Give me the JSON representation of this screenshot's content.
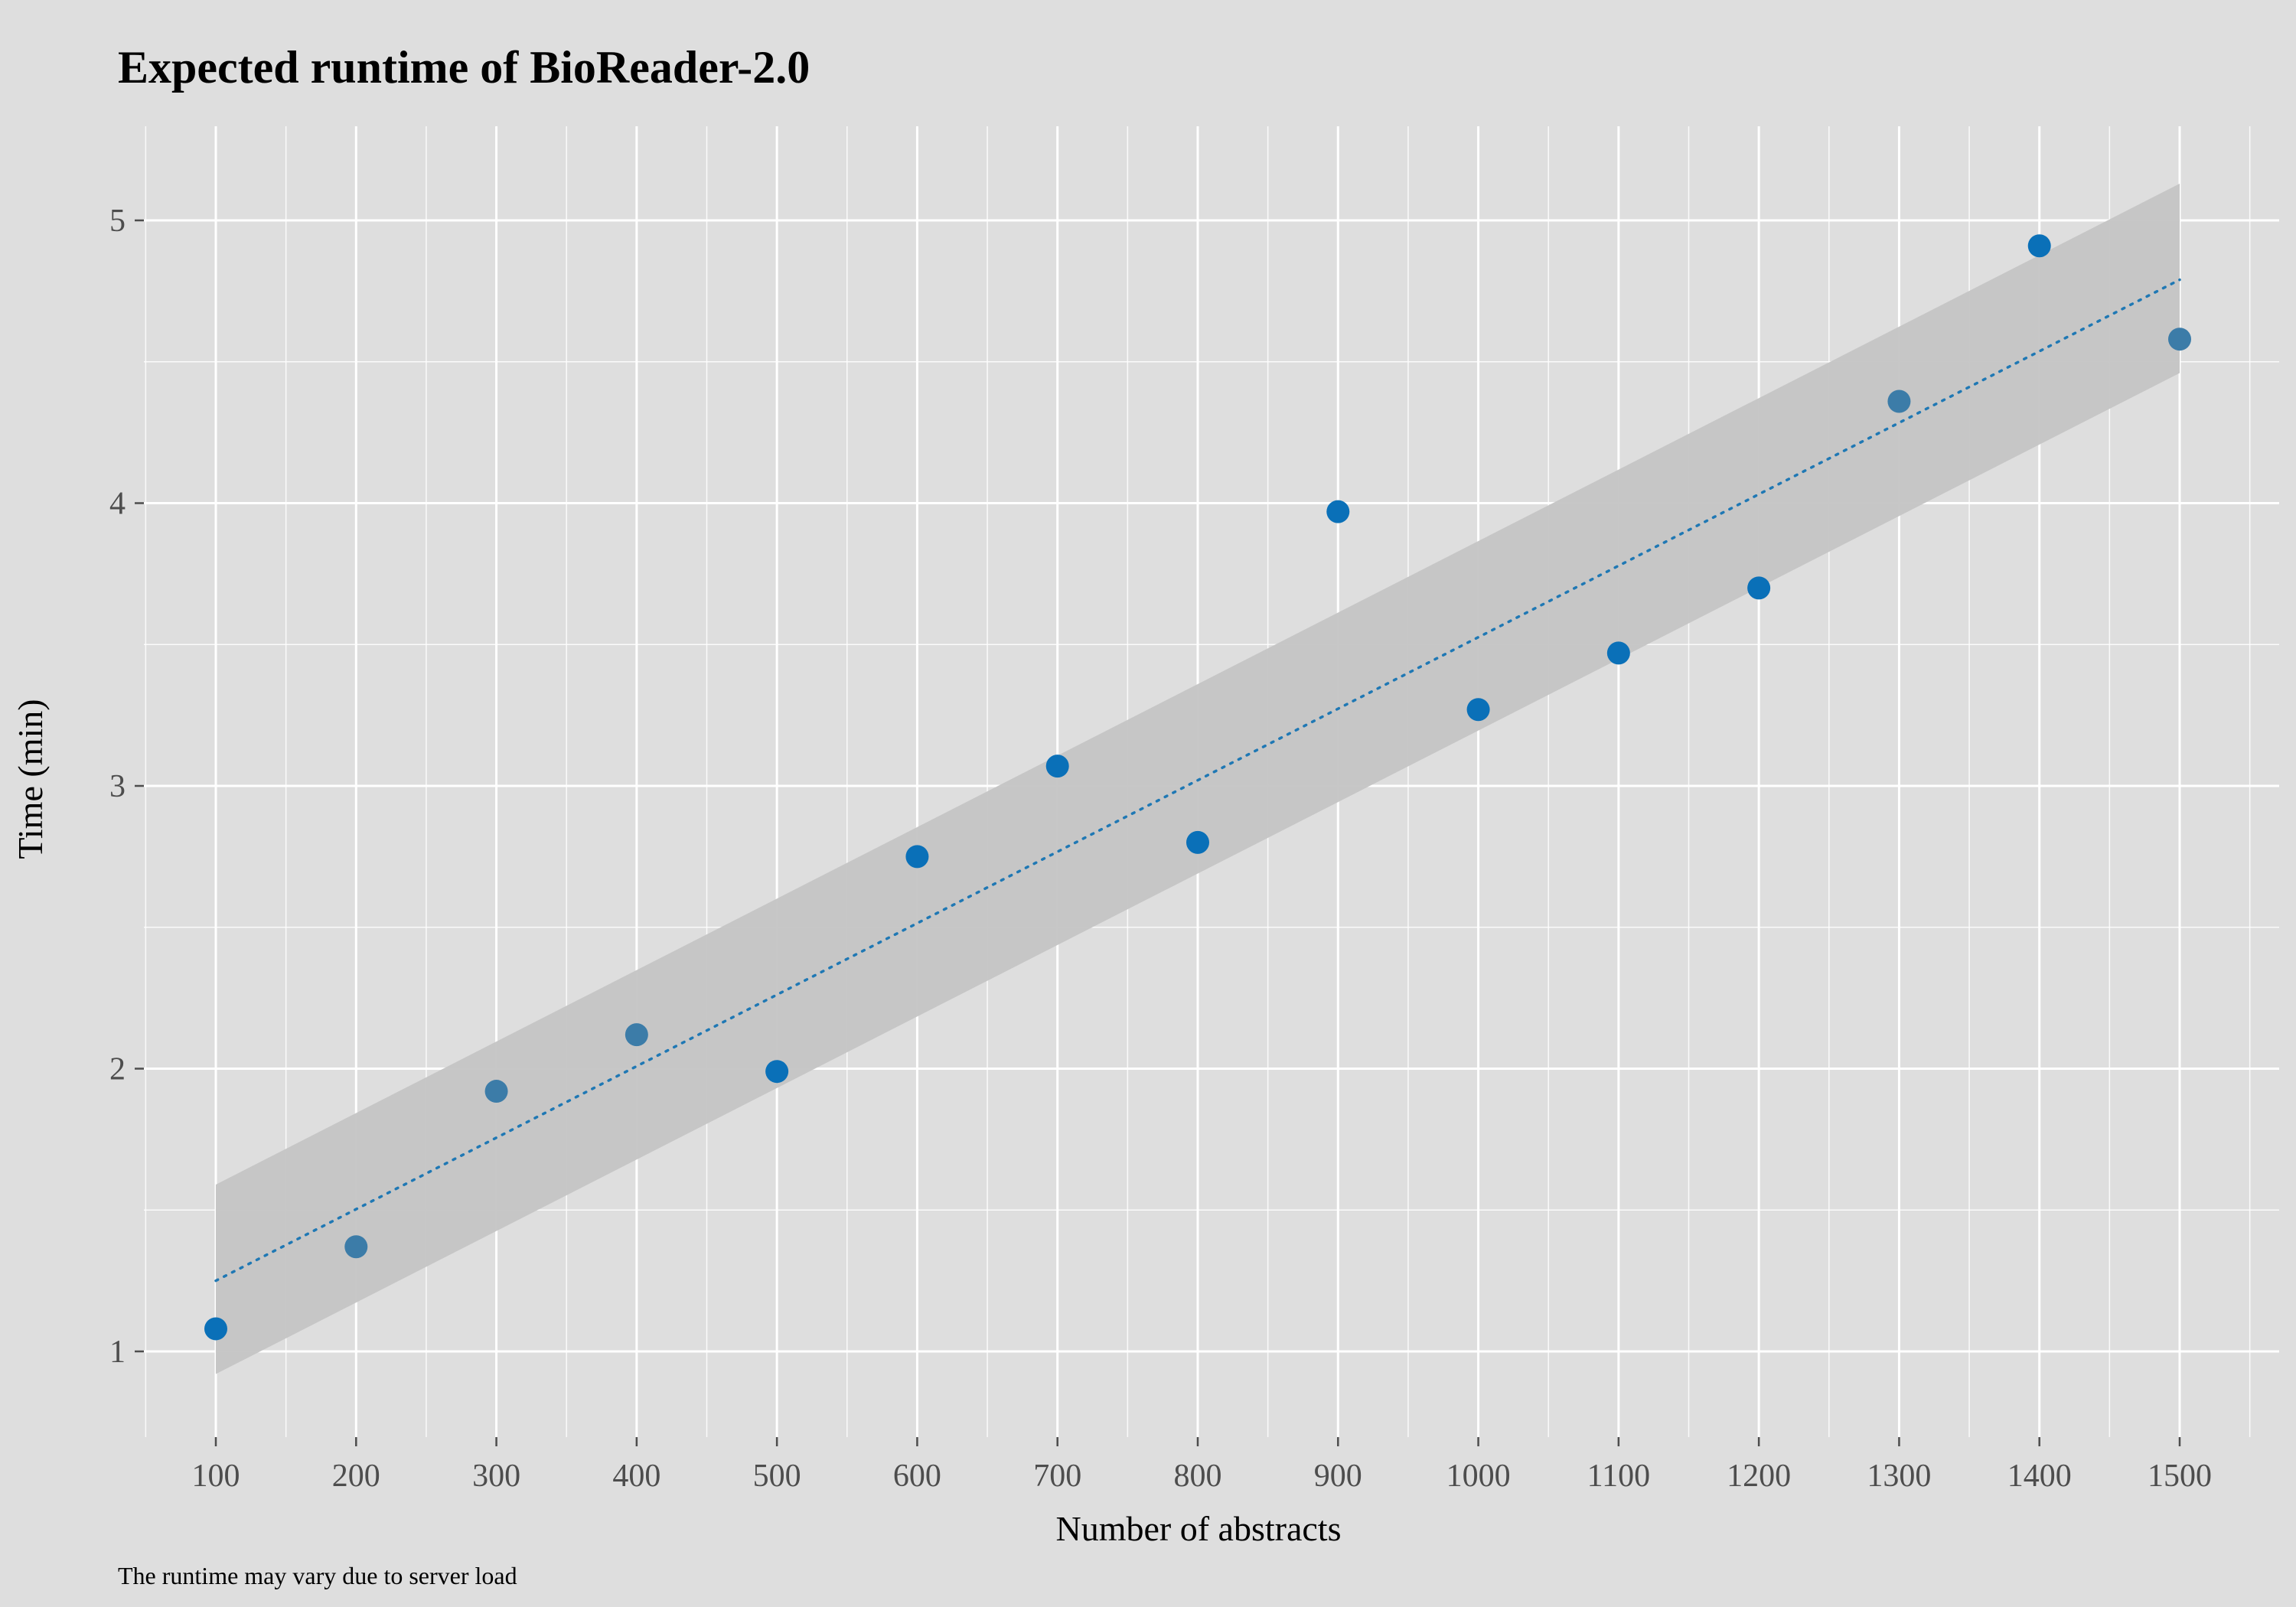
{
  "chart_data": {
    "type": "scatter",
    "title": "Expected runtime of BioReader-2.0",
    "xlabel": "Number of abstracts",
    "ylabel": "Time (min)",
    "caption": "The runtime may vary due to server load",
    "xlim": [
      50,
      1550
    ],
    "ylim": [
      0.8,
      5.3
    ],
    "x_ticks": [
      100,
      200,
      300,
      400,
      500,
      600,
      700,
      800,
      900,
      1000,
      1100,
      1200,
      1300,
      1400,
      1500
    ],
    "x_tick_labels": [
      "100",
      "200",
      "300",
      "400",
      "500",
      "600",
      "700",
      "800",
      "900",
      "1000",
      "1100",
      "1200",
      "1300",
      "1400",
      "1500"
    ],
    "y_ticks": [
      1,
      2,
      3,
      4,
      5
    ],
    "y_tick_labels": [
      "1",
      "2",
      "3",
      "4",
      "5"
    ],
    "grid": true,
    "legend": "none",
    "series": [
      {
        "x": [
          100,
          200,
          300,
          400,
          500,
          600,
          700,
          800,
          900,
          1000,
          1100,
          1200,
          1300,
          1400,
          1500
        ],
        "y": [
          1.08,
          1.37,
          1.92,
          2.12,
          1.99,
          2.75,
          3.07,
          2.8,
          3.97,
          3.27,
          3.47,
          3.7,
          4.36,
          4.91,
          4.58
        ],
        "point_colors": [
          "#0a70b8",
          "#3c7ca8",
          "#3c7ca8",
          "#3c7ca8",
          "#0a70b8",
          "#0a70b8",
          "#0a70b8",
          "#0a70b8",
          "#0a70b8",
          "#0a70b8",
          "#0a70b8",
          "#0a70b8",
          "#3c7ca8",
          "#0a70b8",
          "#3c7ca8"
        ]
      }
    ],
    "trend_line": {
      "type": "linear fit",
      "style": "dotted",
      "color": "#1f78b4",
      "x": [
        100,
        1500
      ],
      "y": [
        1.25,
        4.79
      ]
    },
    "confidence_band": {
      "color": "#c4c4c4",
      "x": [
        100,
        1500
      ],
      "lower": [
        0.92,
        4.46
      ],
      "upper": [
        1.59,
        5.13
      ]
    },
    "colors": {
      "background": "#dedede",
      "grid": "#ffffff",
      "points": "#0a70b8"
    }
  }
}
